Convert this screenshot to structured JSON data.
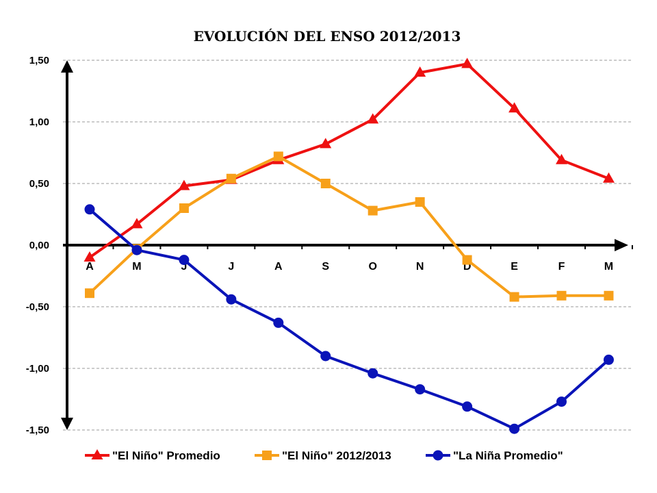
{
  "chart_data": {
    "type": "line",
    "title": "EVOLUCIÓN DEL ENSO 2012/2013",
    "categories": [
      "A",
      "M",
      "J",
      "J",
      "A",
      "S",
      "O",
      "N",
      "D",
      "E",
      "F",
      "M"
    ],
    "y_tick_labels": [
      "1,50",
      "1,00",
      "0,50",
      "0,00",
      "-0,50",
      "-1,00",
      "-1,50"
    ],
    "ylim": [
      -1.5,
      1.5
    ],
    "grid": true,
    "legend_position": "bottom",
    "series": [
      {
        "name": "\"El Niño\" Promedio",
        "color": "#ee1111",
        "marker": "triangle",
        "values": [
          -0.1,
          0.17,
          0.48,
          0.53,
          0.69,
          0.82,
          1.02,
          1.4,
          1.47,
          1.11,
          0.69,
          0.54
        ]
      },
      {
        "name": "\"El Niño\" 2012/2013",
        "color": "#f7a01a",
        "marker": "square",
        "values": [
          -0.39,
          -0.03,
          0.3,
          0.54,
          0.72,
          0.5,
          0.28,
          0.35,
          -0.12,
          -0.42,
          -0.41,
          -0.41
        ]
      },
      {
        "name": "\"La Niña Promedio\"",
        "color": "#0a14b8",
        "marker": "circle",
        "values": [
          0.29,
          -0.04,
          -0.12,
          -0.44,
          -0.63,
          -0.9,
          -1.04,
          -1.17,
          -1.31,
          -1.49,
          -1.27,
          -0.93
        ]
      }
    ]
  }
}
